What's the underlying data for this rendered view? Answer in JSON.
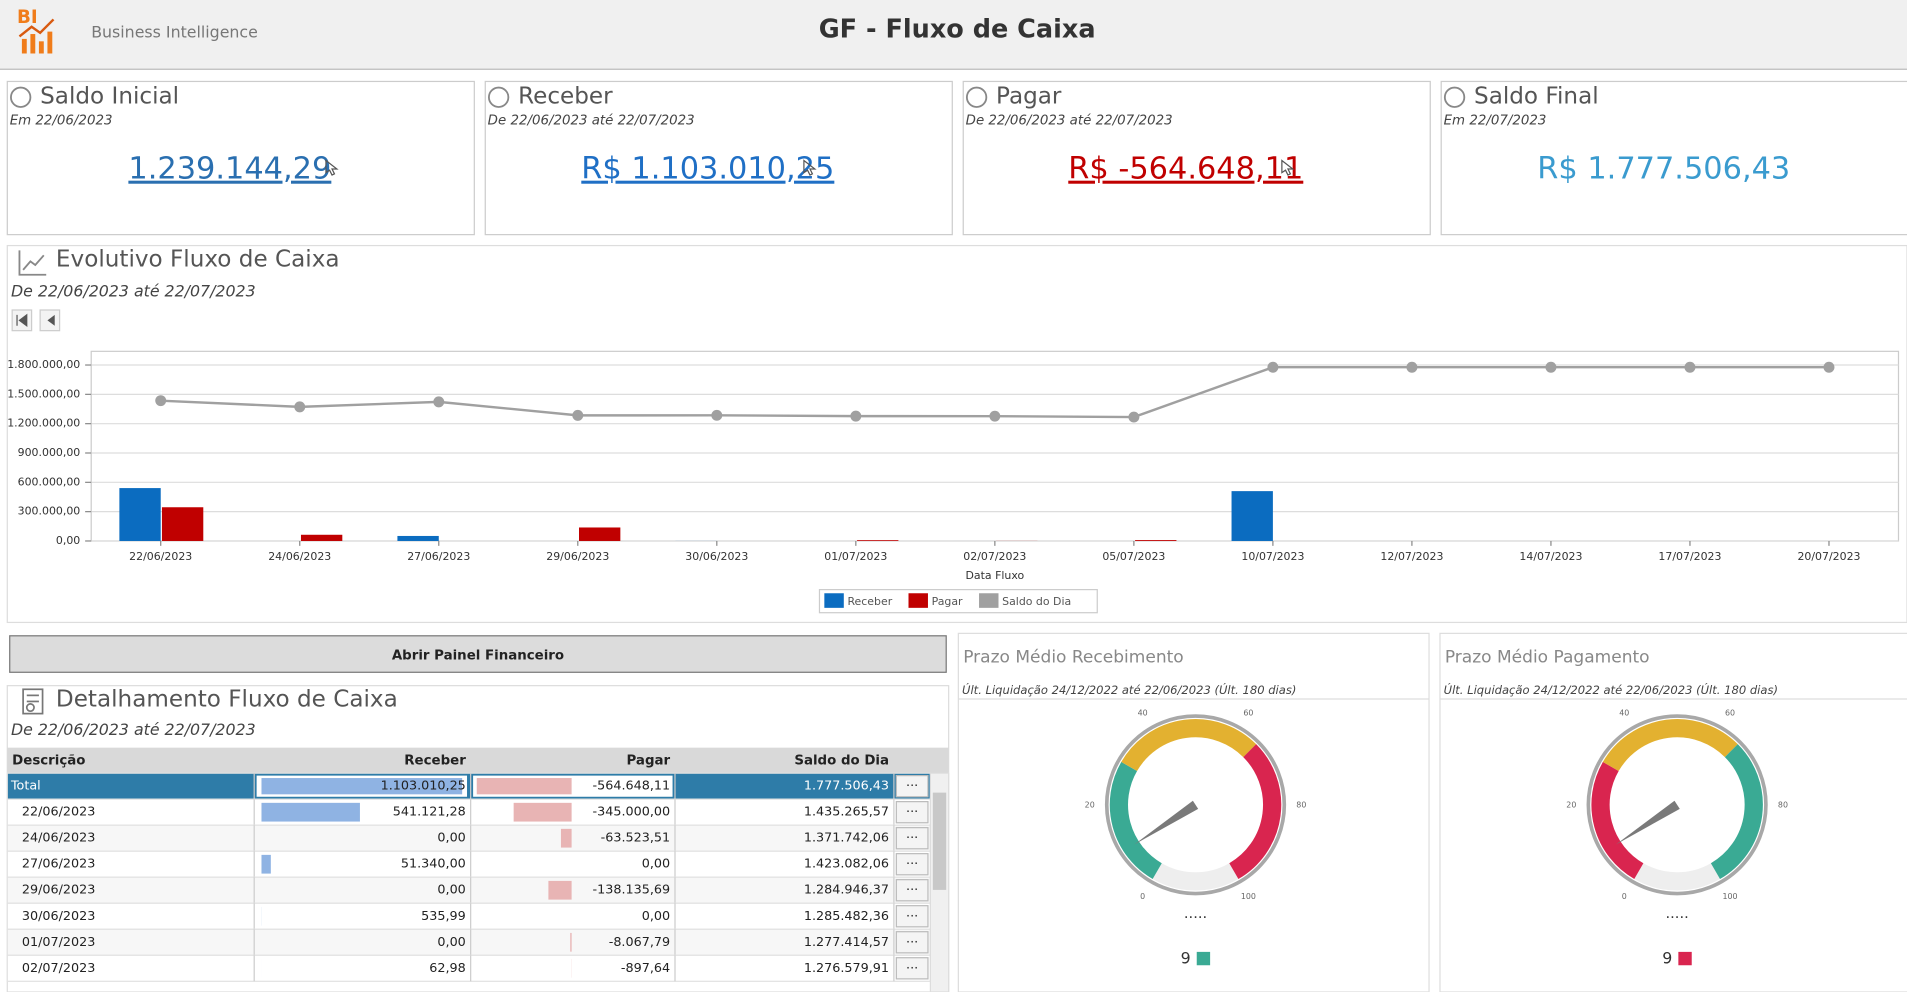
{
  "header": {
    "logo": "BI",
    "brand": "Business Intelligence",
    "title": "GF - Fluxo de Caixa"
  },
  "cards": [
    {
      "title": "Saldo Inicial",
      "subtitle": "Em 22/06/2023",
      "value": "1.239.144,29",
      "color": "#2a6fb0",
      "link": true
    },
    {
      "title": "Receber",
      "subtitle": "De 22/06/2023 até 22/07/2023",
      "value": "R$ 1.103.010,25",
      "color": "#1f6fc5",
      "link": true
    },
    {
      "title": "Pagar",
      "subtitle": "De 22/06/2023 até 22/07/2023",
      "value": "R$ -564.648,11",
      "color": "#c00000",
      "link": true
    },
    {
      "title": "Saldo Final",
      "subtitle": "Em 22/07/2023",
      "value": "R$ 1.777.506,43",
      "color": "#3a9bcf",
      "link": false
    }
  ],
  "chart": {
    "type": "combo",
    "title": "Evolutivo Fluxo de Caixa",
    "subtitle": "De 22/06/2023 até 22/07/2023",
    "x_label": "Data Fluxo",
    "categories": [
      "22/06/2023",
      "24/06/2023",
      "27/06/2023",
      "29/06/2023",
      "30/06/2023",
      "01/07/2023",
      "02/07/2023",
      "05/07/2023",
      "10/07/2023",
      "12/07/2023",
      "14/07/2023",
      "17/07/2023",
      "20/07/2023"
    ],
    "series": [
      {
        "name": "Receber",
        "kind": "bar",
        "color": "#0b6cc0",
        "values": [
          541121.28,
          0,
          51340,
          0,
          535.99,
          0,
          62.98,
          0,
          509950,
          0,
          0,
          0,
          0
        ]
      },
      {
        "name": "Pagar",
        "kind": "bar",
        "color": "#c00000",
        "values": [
          345000,
          63523.51,
          0,
          138135.69,
          0,
          8067.79,
          897.64,
          9023.48,
          0,
          0,
          0,
          0,
          0
        ]
      },
      {
        "name": "Saldo do Dia",
        "kind": "line",
        "color": "#a0a0a0",
        "values": [
          1435265.57,
          1371742.06,
          1423082.06,
          1284946.37,
          1285482.36,
          1277414.57,
          1276579.91,
          1267556.43,
          1777506.43,
          1777506.43,
          1777506.43,
          1777506.43,
          1777506.43
        ]
      }
    ],
    "ylim": [
      0,
      1940000
    ],
    "yticks": [
      {
        "value": 0,
        "label": "0,00"
      },
      {
        "value": 300000,
        "label": "300.000,00"
      },
      {
        "value": 600000,
        "label": "600.000,00"
      },
      {
        "value": 900000,
        "label": "900.000,00"
      },
      {
        "value": 1200000,
        "label": "1.200.000,00"
      },
      {
        "value": 1500000,
        "label": "1.500.000,00"
      },
      {
        "value": 1800000,
        "label": "1.800.000,00"
      }
    ],
    "grid": true
  },
  "button": "Abrir Painel Financeiro",
  "table": {
    "title": "Detalhamento Fluxo de Caixa",
    "subtitle": "De 22/06/2023 até 22/07/2023",
    "row_button": "···",
    "columns": [
      "Descrição",
      "Receber",
      "Pagar",
      "Saldo do Dia"
    ],
    "rows": [
      [
        "Total",
        "1.103.010,25",
        "-564.648,11",
        "1.777.506,43"
      ],
      [
        "22/06/2023",
        "541.121,28",
        "-345.000,00",
        "1.435.265,57"
      ],
      [
        "24/06/2023",
        "0,00",
        "-63.523,51",
        "1.371.742,06"
      ],
      [
        "27/06/2023",
        "51.340,00",
        "0,00",
        "1.423.082,06"
      ],
      [
        "29/06/2023",
        "0,00",
        "-138.135,69",
        "1.284.946,37"
      ],
      [
        "30/06/2023",
        "535,99",
        "0,00",
        "1.285.482,36"
      ],
      [
        "01/07/2023",
        "0,00",
        "-8.067,79",
        "1.277.414,57"
      ],
      [
        "02/07/2023",
        "62,98",
        "-897,64",
        "1.276.579,91"
      ]
    ]
  },
  "gauges": [
    {
      "title": "Prazo Médio Recebimento",
      "subtitle": "Últ. Liquidação 24/12/2022 até 22/06/2023 (Últ. 180 dias)",
      "ticks": [
        0,
        20,
        40,
        60,
        80,
        100
      ],
      "placeholder": ".....",
      "value": 9,
      "marker_color": "#3aaa94",
      "bands": [
        {
          "from": 0,
          "to": 30,
          "color": "#3aaa94"
        },
        {
          "from": 30,
          "to": 65,
          "color": "#e3b130"
        },
        {
          "from": 65,
          "to": 100,
          "color": "#d9254f"
        }
      ]
    },
    {
      "title": "Prazo Médio Pagamento",
      "subtitle": "Últ. Liquidação 24/12/2022 até 22/06/2023 (Últ. 180 dias)",
      "ticks": [
        0,
        20,
        40,
        60,
        80,
        100
      ],
      "placeholder": ".....",
      "value": 9,
      "marker_color": "#d9254f",
      "bands": [
        {
          "from": 0,
          "to": 30,
          "color": "#d9254f"
        },
        {
          "from": 30,
          "to": 65,
          "color": "#e3b130"
        },
        {
          "from": 65,
          "to": 100,
          "color": "#3aaa94"
        }
      ]
    }
  ]
}
